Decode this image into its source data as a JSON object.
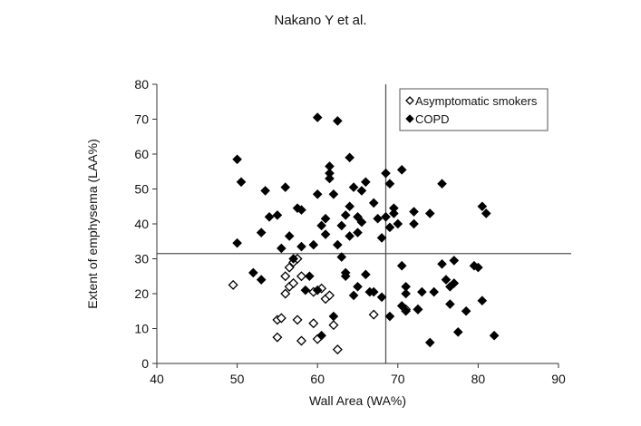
{
  "header": "Nakano Y et al.",
  "chart_data": {
    "type": "scatter",
    "xlabel": "Wall Area (WA%)",
    "ylabel": "Extent of emphysema (LAA%)",
    "xlim": [
      40,
      90
    ],
    "ylim": [
      0,
      80
    ],
    "xticks": [
      "40",
      "50",
      "60",
      "70",
      "80",
      "90"
    ],
    "yticks": [
      "0",
      "10",
      "20",
      "30",
      "40",
      "50",
      "60",
      "70",
      "80"
    ],
    "grid": false,
    "legend_position": "top-right",
    "reference_lines": {
      "vertical_x": 68.5,
      "horizontal_y": 31.5
    },
    "series": [
      {
        "name": "Asymptomatic smokers",
        "marker": "open-diamond",
        "color": "#000000",
        "points": [
          [
            49.5,
            22.5
          ],
          [
            55.0,
            12.5
          ],
          [
            55.5,
            13.0
          ],
          [
            55.0,
            7.5
          ],
          [
            56.0,
            20.0
          ],
          [
            56.0,
            25.0
          ],
          [
            56.5,
            27.5
          ],
          [
            56.5,
            22.0
          ],
          [
            57.0,
            23.0
          ],
          [
            57.0,
            29.0
          ],
          [
            57.5,
            30.0
          ],
          [
            57.5,
            12.5
          ],
          [
            58.0,
            6.5
          ],
          [
            58.0,
            25.0
          ],
          [
            59.5,
            11.5
          ],
          [
            59.5,
            20.5
          ],
          [
            60.0,
            7.0
          ],
          [
            60.5,
            21.5
          ],
          [
            61.0,
            18.5
          ],
          [
            61.5,
            19.5
          ],
          [
            62.0,
            11.0
          ],
          [
            62.5,
            4.0
          ],
          [
            67.0,
            14.0
          ],
          [
            71.0,
            15.5
          ],
          [
            72.5,
            15.5
          ]
        ]
      },
      {
        "name": "COPD",
        "marker": "filled-diamond",
        "color": "#000000",
        "points": [
          [
            50.0,
            58.5
          ],
          [
            50.0,
            34.5
          ],
          [
            50.5,
            52.0
          ],
          [
            52.0,
            26.0
          ],
          [
            53.0,
            24.0
          ],
          [
            53.0,
            37.5
          ],
          [
            53.5,
            49.5
          ],
          [
            54.0,
            42.0
          ],
          [
            55.0,
            42.5
          ],
          [
            55.5,
            33.0
          ],
          [
            56.0,
            50.5
          ],
          [
            56.5,
            36.5
          ],
          [
            57.0,
            30.0
          ],
          [
            57.5,
            44.5
          ],
          [
            58.0,
            44.0
          ],
          [
            58.0,
            33.5
          ],
          [
            58.5,
            21.0
          ],
          [
            59.0,
            25.0
          ],
          [
            59.5,
            34.0
          ],
          [
            60.0,
            48.5
          ],
          [
            60.0,
            21.0
          ],
          [
            60.5,
            39.5
          ],
          [
            60.5,
            8.0
          ],
          [
            60.0,
            70.5
          ],
          [
            61.0,
            37.0
          ],
          [
            61.0,
            41.5
          ],
          [
            61.5,
            53.0
          ],
          [
            61.5,
            54.5
          ],
          [
            61.5,
            56.5
          ],
          [
            62.0,
            48.5
          ],
          [
            62.0,
            13.5
          ],
          [
            62.5,
            34.0
          ],
          [
            62.5,
            69.5
          ],
          [
            63.0,
            39.5
          ],
          [
            63.0,
            30.5
          ],
          [
            63.5,
            42.5
          ],
          [
            63.5,
            26.0
          ],
          [
            63.5,
            25.0
          ],
          [
            64.0,
            59.0
          ],
          [
            64.0,
            45.0
          ],
          [
            64.0,
            36.5
          ],
          [
            64.5,
            50.5
          ],
          [
            64.5,
            19.5
          ],
          [
            65.0,
            42.0
          ],
          [
            65.0,
            22.0
          ],
          [
            65.0,
            37.5
          ],
          [
            65.5,
            49.5
          ],
          [
            65.5,
            40.5
          ],
          [
            66.0,
            25.5
          ],
          [
            66.0,
            52.0
          ],
          [
            66.5,
            20.5
          ],
          [
            67.0,
            46.0
          ],
          [
            67.0,
            20.5
          ],
          [
            67.5,
            41.5
          ],
          [
            68.0,
            36.0
          ],
          [
            68.5,
            54.5
          ],
          [
            68.0,
            19.0
          ],
          [
            68.5,
            42.0
          ],
          [
            69.0,
            51.5
          ],
          [
            69.0,
            39.0
          ],
          [
            69.5,
            44.5
          ],
          [
            69.5,
            43.0
          ],
          [
            69.0,
            13.5
          ],
          [
            70.0,
            40.0
          ],
          [
            70.5,
            16.5
          ],
          [
            70.5,
            55.5
          ],
          [
            70.5,
            28.0
          ],
          [
            71.0,
            22.0
          ],
          [
            71.0,
            20.0
          ],
          [
            71.0,
            15.0
          ],
          [
            72.0,
            40.0
          ],
          [
            72.0,
            43.5
          ],
          [
            72.5,
            15.5
          ],
          [
            73.0,
            20.5
          ],
          [
            74.0,
            6.0
          ],
          [
            74.0,
            43.0
          ],
          [
            74.5,
            20.5
          ],
          [
            75.5,
            28.5
          ],
          [
            75.5,
            51.5
          ],
          [
            76.0,
            24.0
          ],
          [
            76.5,
            17.0
          ],
          [
            76.5,
            22.0
          ],
          [
            77.0,
            23.0
          ],
          [
            77.0,
            29.5
          ],
          [
            77.5,
            9.0
          ],
          [
            78.5,
            15.0
          ],
          [
            79.5,
            28.0
          ],
          [
            80.0,
            27.5
          ],
          [
            80.5,
            45.0
          ],
          [
            80.5,
            18.0
          ],
          [
            81.0,
            43.0
          ],
          [
            82.0,
            8.0
          ]
        ]
      }
    ]
  }
}
